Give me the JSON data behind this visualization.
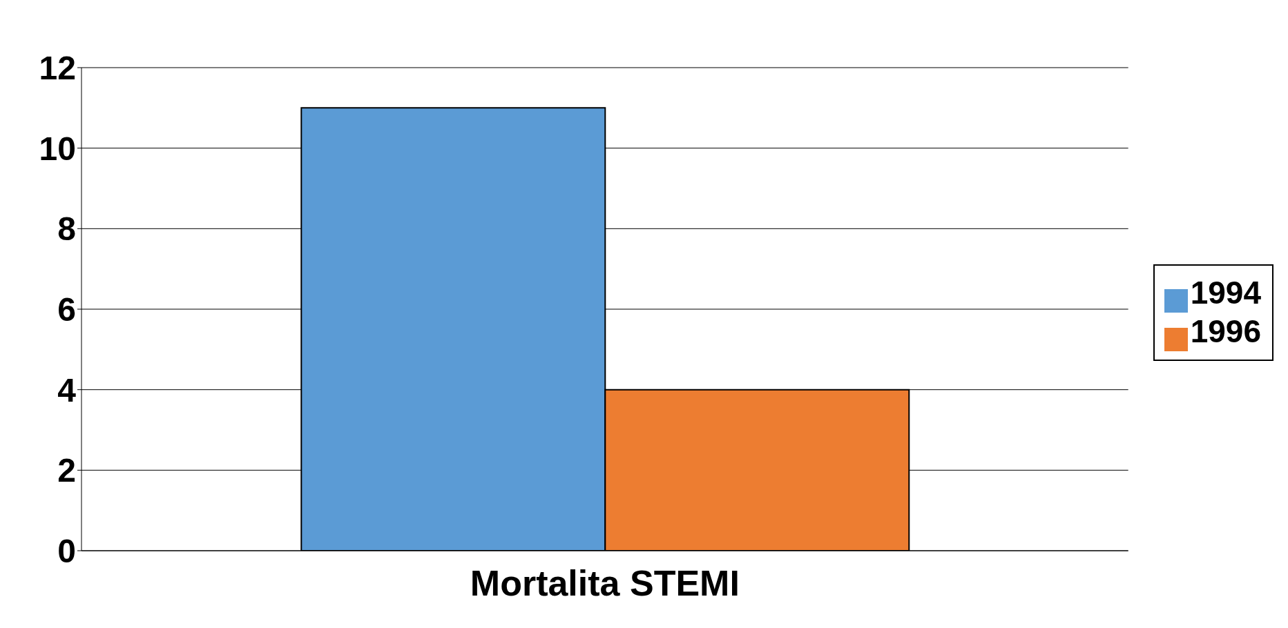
{
  "chart_data": {
    "type": "bar",
    "categories": [
      "Mortalita STEMI"
    ],
    "series": [
      {
        "name": "1994",
        "color": "#5b9bd5",
        "values": [
          11
        ]
      },
      {
        "name": "1996",
        "color": "#ed7d31",
        "values": [
          4
        ]
      }
    ],
    "ylim": [
      0,
      12
    ],
    "yticks": [
      0,
      2,
      4,
      6,
      8,
      10,
      12
    ],
    "grid": "y",
    "legend": "right"
  }
}
